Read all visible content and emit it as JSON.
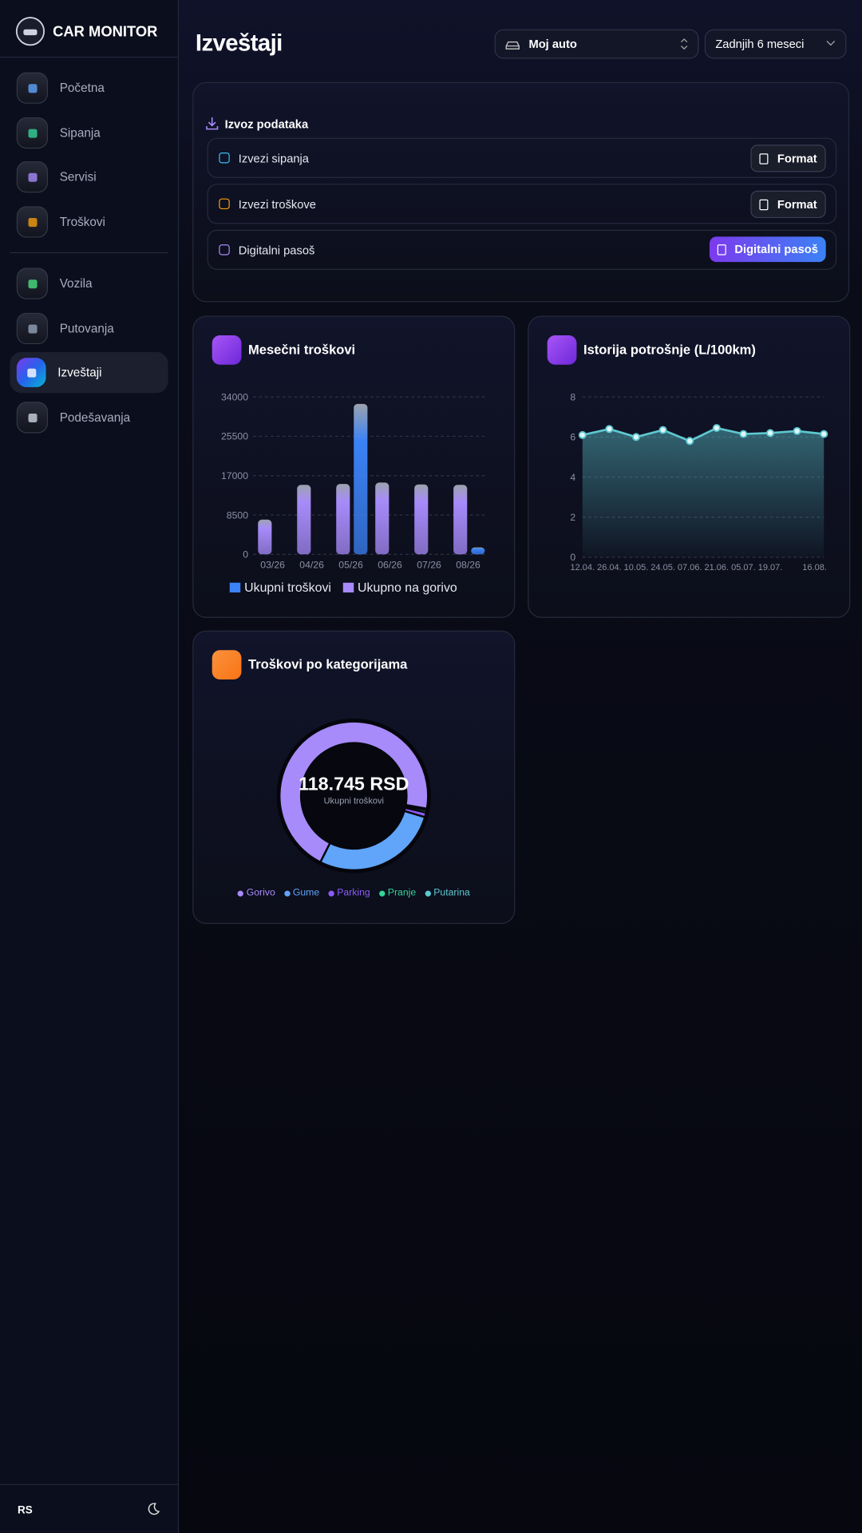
{
  "app": {
    "title": "CAR MONITOR",
    "nav": [
      "Početna",
      "Sipanja",
      "Servisi",
      "Troškovi",
      "Vozila",
      "Putovanja",
      "Izveštaji",
      "Podešavanja"
    ],
    "active": 6,
    "language": "RS"
  },
  "header": {
    "title": "Izveštaji",
    "vehicle": "Moj auto",
    "period": "Zadnjih 6 meseci"
  },
  "export": {
    "title": "Izvoz podataka",
    "rows": [
      {
        "label": "Izvezi sipanja",
        "button": "Format"
      },
      {
        "label": "Izvezi troškove",
        "button": "Format"
      },
      {
        "label": "Digitalni pasoš",
        "button": "Digitalni pasoš"
      }
    ]
  },
  "chart_data": [
    {
      "type": "bar",
      "title": "Mesečni troškovi",
      "categories": [
        "03/26",
        "04/26",
        "05/26",
        "06/26",
        "07/26",
        "08/26"
      ],
      "series": [
        {
          "name": "Ukupno na gorivo",
          "color": "#a78bfa",
          "values": [
            7500,
            15000,
            15200,
            15500,
            15100,
            15000
          ]
        },
        {
          "name": "Ukupni troškovi",
          "color": "#3b82f6",
          "values": [
            0,
            0,
            32500,
            0,
            0,
            1500
          ]
        }
      ],
      "legend_order": [
        1,
        0
      ],
      "ylim": [
        0,
        34000
      ],
      "yticks": [
        0,
        8500,
        17000,
        25500,
        34000
      ],
      "grid": true
    },
    {
      "type": "line",
      "title": "Istorija potrošnje (L/100km)",
      "categories": [
        "12.04.",
        "26.04.",
        "10.05.",
        "24.05.",
        "07.06.",
        "21.06.",
        "05.07.",
        "19.07.",
        null,
        "16.08."
      ],
      "series": [
        {
          "name": "L/100km",
          "color": "#5ec8d0",
          "values": [
            6.1,
            6.4,
            6.0,
            6.35,
            5.8,
            6.45,
            6.15,
            6.2,
            6.3,
            6.15
          ]
        }
      ],
      "ylim": [
        0,
        8
      ],
      "yticks": [
        0,
        2,
        4,
        6,
        8
      ],
      "grid": true
    },
    {
      "type": "pie",
      "title": "Troškovi po kategorijama",
      "center_label": "118.745 RSD",
      "center_sublabel": "Ukupni troškovi",
      "categories": [
        "Gorivo",
        "Gume",
        "Parking",
        "Pranje",
        "Putarina"
      ],
      "values": [
        83540,
        33000,
        1200,
        600,
        405
      ],
      "colors": [
        "#a78bfa",
        "#60a5fa",
        "#8b5cf6",
        "#34d399",
        "#5ec8d0"
      ]
    }
  ]
}
